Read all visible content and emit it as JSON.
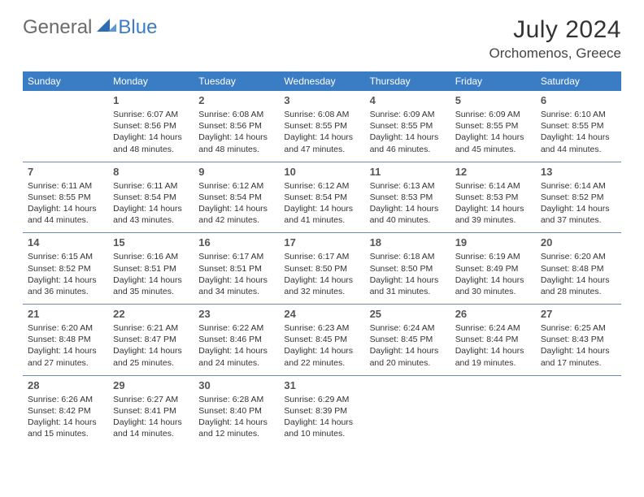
{
  "brand": {
    "part1": "General",
    "part2": "Blue",
    "logo_color": "#3b7dc4"
  },
  "header": {
    "month": "July 2024",
    "location": "Orchomenos, Greece"
  },
  "colors": {
    "header_bg": "#3b7dc4",
    "header_text": "#ffffff",
    "rule": "#6b8db7",
    "daynum": "#555",
    "text": "#333",
    "bg": "#ffffff"
  },
  "layout": {
    "cols": 7,
    "rows": 5,
    "day_header_fontsize": 12,
    "month_fontsize": 30,
    "location_fontsize": 17,
    "cell_fontsize": 10.5
  },
  "columns": [
    "Sunday",
    "Monday",
    "Tuesday",
    "Wednesday",
    "Thursday",
    "Friday",
    "Saturday"
  ],
  "weeks": [
    [
      {
        "day": "",
        "text": ""
      },
      {
        "day": "1",
        "text": "Sunrise: 6:07 AM\nSunset: 8:56 PM\nDaylight: 14 hours and 48 minutes."
      },
      {
        "day": "2",
        "text": "Sunrise: 6:08 AM\nSunset: 8:56 PM\nDaylight: 14 hours and 48 minutes."
      },
      {
        "day": "3",
        "text": "Sunrise: 6:08 AM\nSunset: 8:55 PM\nDaylight: 14 hours and 47 minutes."
      },
      {
        "day": "4",
        "text": "Sunrise: 6:09 AM\nSunset: 8:55 PM\nDaylight: 14 hours and 46 minutes."
      },
      {
        "day": "5",
        "text": "Sunrise: 6:09 AM\nSunset: 8:55 PM\nDaylight: 14 hours and 45 minutes."
      },
      {
        "day": "6",
        "text": "Sunrise: 6:10 AM\nSunset: 8:55 PM\nDaylight: 14 hours and 44 minutes."
      }
    ],
    [
      {
        "day": "7",
        "text": "Sunrise: 6:11 AM\nSunset: 8:55 PM\nDaylight: 14 hours and 44 minutes."
      },
      {
        "day": "8",
        "text": "Sunrise: 6:11 AM\nSunset: 8:54 PM\nDaylight: 14 hours and 43 minutes."
      },
      {
        "day": "9",
        "text": "Sunrise: 6:12 AM\nSunset: 8:54 PM\nDaylight: 14 hours and 42 minutes."
      },
      {
        "day": "10",
        "text": "Sunrise: 6:12 AM\nSunset: 8:54 PM\nDaylight: 14 hours and 41 minutes."
      },
      {
        "day": "11",
        "text": "Sunrise: 6:13 AM\nSunset: 8:53 PM\nDaylight: 14 hours and 40 minutes."
      },
      {
        "day": "12",
        "text": "Sunrise: 6:14 AM\nSunset: 8:53 PM\nDaylight: 14 hours and 39 minutes."
      },
      {
        "day": "13",
        "text": "Sunrise: 6:14 AM\nSunset: 8:52 PM\nDaylight: 14 hours and 37 minutes."
      }
    ],
    [
      {
        "day": "14",
        "text": "Sunrise: 6:15 AM\nSunset: 8:52 PM\nDaylight: 14 hours and 36 minutes."
      },
      {
        "day": "15",
        "text": "Sunrise: 6:16 AM\nSunset: 8:51 PM\nDaylight: 14 hours and 35 minutes."
      },
      {
        "day": "16",
        "text": "Sunrise: 6:17 AM\nSunset: 8:51 PM\nDaylight: 14 hours and 34 minutes."
      },
      {
        "day": "17",
        "text": "Sunrise: 6:17 AM\nSunset: 8:50 PM\nDaylight: 14 hours and 32 minutes."
      },
      {
        "day": "18",
        "text": "Sunrise: 6:18 AM\nSunset: 8:50 PM\nDaylight: 14 hours and 31 minutes."
      },
      {
        "day": "19",
        "text": "Sunrise: 6:19 AM\nSunset: 8:49 PM\nDaylight: 14 hours and 30 minutes."
      },
      {
        "day": "20",
        "text": "Sunrise: 6:20 AM\nSunset: 8:48 PM\nDaylight: 14 hours and 28 minutes."
      }
    ],
    [
      {
        "day": "21",
        "text": "Sunrise: 6:20 AM\nSunset: 8:48 PM\nDaylight: 14 hours and 27 minutes."
      },
      {
        "day": "22",
        "text": "Sunrise: 6:21 AM\nSunset: 8:47 PM\nDaylight: 14 hours and 25 minutes."
      },
      {
        "day": "23",
        "text": "Sunrise: 6:22 AM\nSunset: 8:46 PM\nDaylight: 14 hours and 24 minutes."
      },
      {
        "day": "24",
        "text": "Sunrise: 6:23 AM\nSunset: 8:45 PM\nDaylight: 14 hours and 22 minutes."
      },
      {
        "day": "25",
        "text": "Sunrise: 6:24 AM\nSunset: 8:45 PM\nDaylight: 14 hours and 20 minutes."
      },
      {
        "day": "26",
        "text": "Sunrise: 6:24 AM\nSunset: 8:44 PM\nDaylight: 14 hours and 19 minutes."
      },
      {
        "day": "27",
        "text": "Sunrise: 6:25 AM\nSunset: 8:43 PM\nDaylight: 14 hours and 17 minutes."
      }
    ],
    [
      {
        "day": "28",
        "text": "Sunrise: 6:26 AM\nSunset: 8:42 PM\nDaylight: 14 hours and 15 minutes."
      },
      {
        "day": "29",
        "text": "Sunrise: 6:27 AM\nSunset: 8:41 PM\nDaylight: 14 hours and 14 minutes."
      },
      {
        "day": "30",
        "text": "Sunrise: 6:28 AM\nSunset: 8:40 PM\nDaylight: 14 hours and 12 minutes."
      },
      {
        "day": "31",
        "text": "Sunrise: 6:29 AM\nSunset: 8:39 PM\nDaylight: 14 hours and 10 minutes."
      },
      {
        "day": "",
        "text": ""
      },
      {
        "day": "",
        "text": ""
      },
      {
        "day": "",
        "text": ""
      }
    ]
  ]
}
